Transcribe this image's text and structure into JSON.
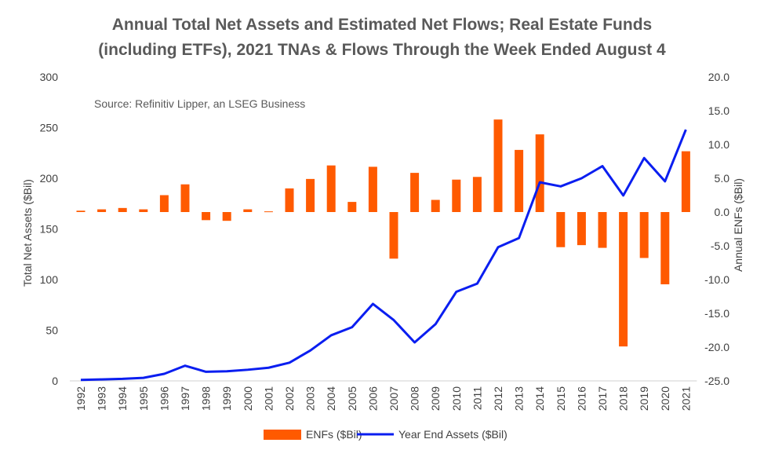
{
  "chart_data": {
    "type": "bar+line",
    "title_line1": "Annual Total Net Assets and Estimated Net Flows; Real Estate Funds",
    "title_line2": "(including ETFs), 2021 TNAs & Flows Through the Week Ended August 4",
    "source": "Source: Refinitiv Lipper, an LSEG Business",
    "ylabel_left": "Total Net Assets ($Bil)",
    "ylabel_right": "Annual ENFs ($Bil)",
    "ylim_left": [
      0,
      300
    ],
    "ylim_right": [
      -25,
      20
    ],
    "yticks_left": [
      "0",
      "50",
      "100",
      "150",
      "200",
      "250",
      "300"
    ],
    "yticks_right": [
      "-25.0",
      "-20.0",
      "-15.0",
      "-10.0",
      "-5.0",
      "0.0",
      "5.0",
      "10.0",
      "15.0",
      "20.0"
    ],
    "categories": [
      "1992",
      "1993",
      "1994",
      "1995",
      "1996",
      "1997",
      "1998",
      "1999",
      "2000",
      "2001",
      "2002",
      "2003",
      "2004",
      "2005",
      "2006",
      "2007",
      "2008",
      "2009",
      "2010",
      "2011",
      "2012",
      "2013",
      "2014",
      "2015",
      "2016",
      "2017",
      "2018",
      "2019",
      "2020",
      "2021"
    ],
    "series": [
      {
        "name": "ENFs ($Bil)",
        "type": "bar",
        "axis": "right",
        "color": "#FF5A00",
        "values": [
          0.2,
          0.4,
          0.6,
          0.4,
          2.5,
          4.1,
          -1.2,
          -1.3,
          0.4,
          0.1,
          3.5,
          4.9,
          6.9,
          1.5,
          6.7,
          -6.9,
          5.8,
          1.8,
          4.8,
          5.2,
          13.7,
          9.2,
          11.5,
          -5.2,
          -4.9,
          -5.3,
          -19.9,
          -6.8,
          -10.7,
          9.0
        ]
      },
      {
        "name": "Year End Assets ($Bil)",
        "type": "line",
        "axis": "left",
        "color": "#0A1EF0",
        "values": [
          1,
          1.5,
          2,
          3,
          7,
          15,
          9,
          9.5,
          11,
          13,
          18,
          30,
          45,
          53,
          76,
          60,
          38,
          56,
          88,
          96,
          132,
          141,
          196,
          192,
          200,
          212,
          183,
          220,
          197,
          248
        ]
      }
    ],
    "legend_position": "bottom",
    "grid": false
  }
}
